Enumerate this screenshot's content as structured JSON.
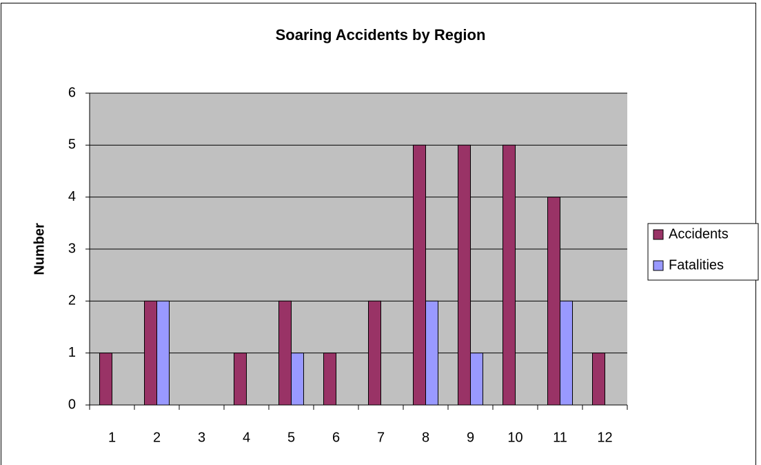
{
  "chart_data": {
    "type": "bar",
    "title": "Soaring Accidents by Region",
    "y_label": "Number",
    "categories": [
      "1",
      "2",
      "3",
      "4",
      "5",
      "6",
      "7",
      "8",
      "9",
      "10",
      "11",
      "12"
    ],
    "series": [
      {
        "name": "Accidents",
        "color": "#993366",
        "values": [
          1,
          2,
          0,
          1,
          2,
          1,
          2,
          5,
          5,
          5,
          4,
          1
        ]
      },
      {
        "name": "Fatalities",
        "color": "#9999ff",
        "values": [
          0,
          2,
          0,
          0,
          1,
          0,
          0,
          2,
          1,
          0,
          2,
          0
        ]
      }
    ],
    "ylim": [
      0,
      6
    ],
    "yticks": [
      0,
      1,
      2,
      3,
      4,
      5,
      6
    ],
    "grid": true,
    "legend": "right"
  }
}
